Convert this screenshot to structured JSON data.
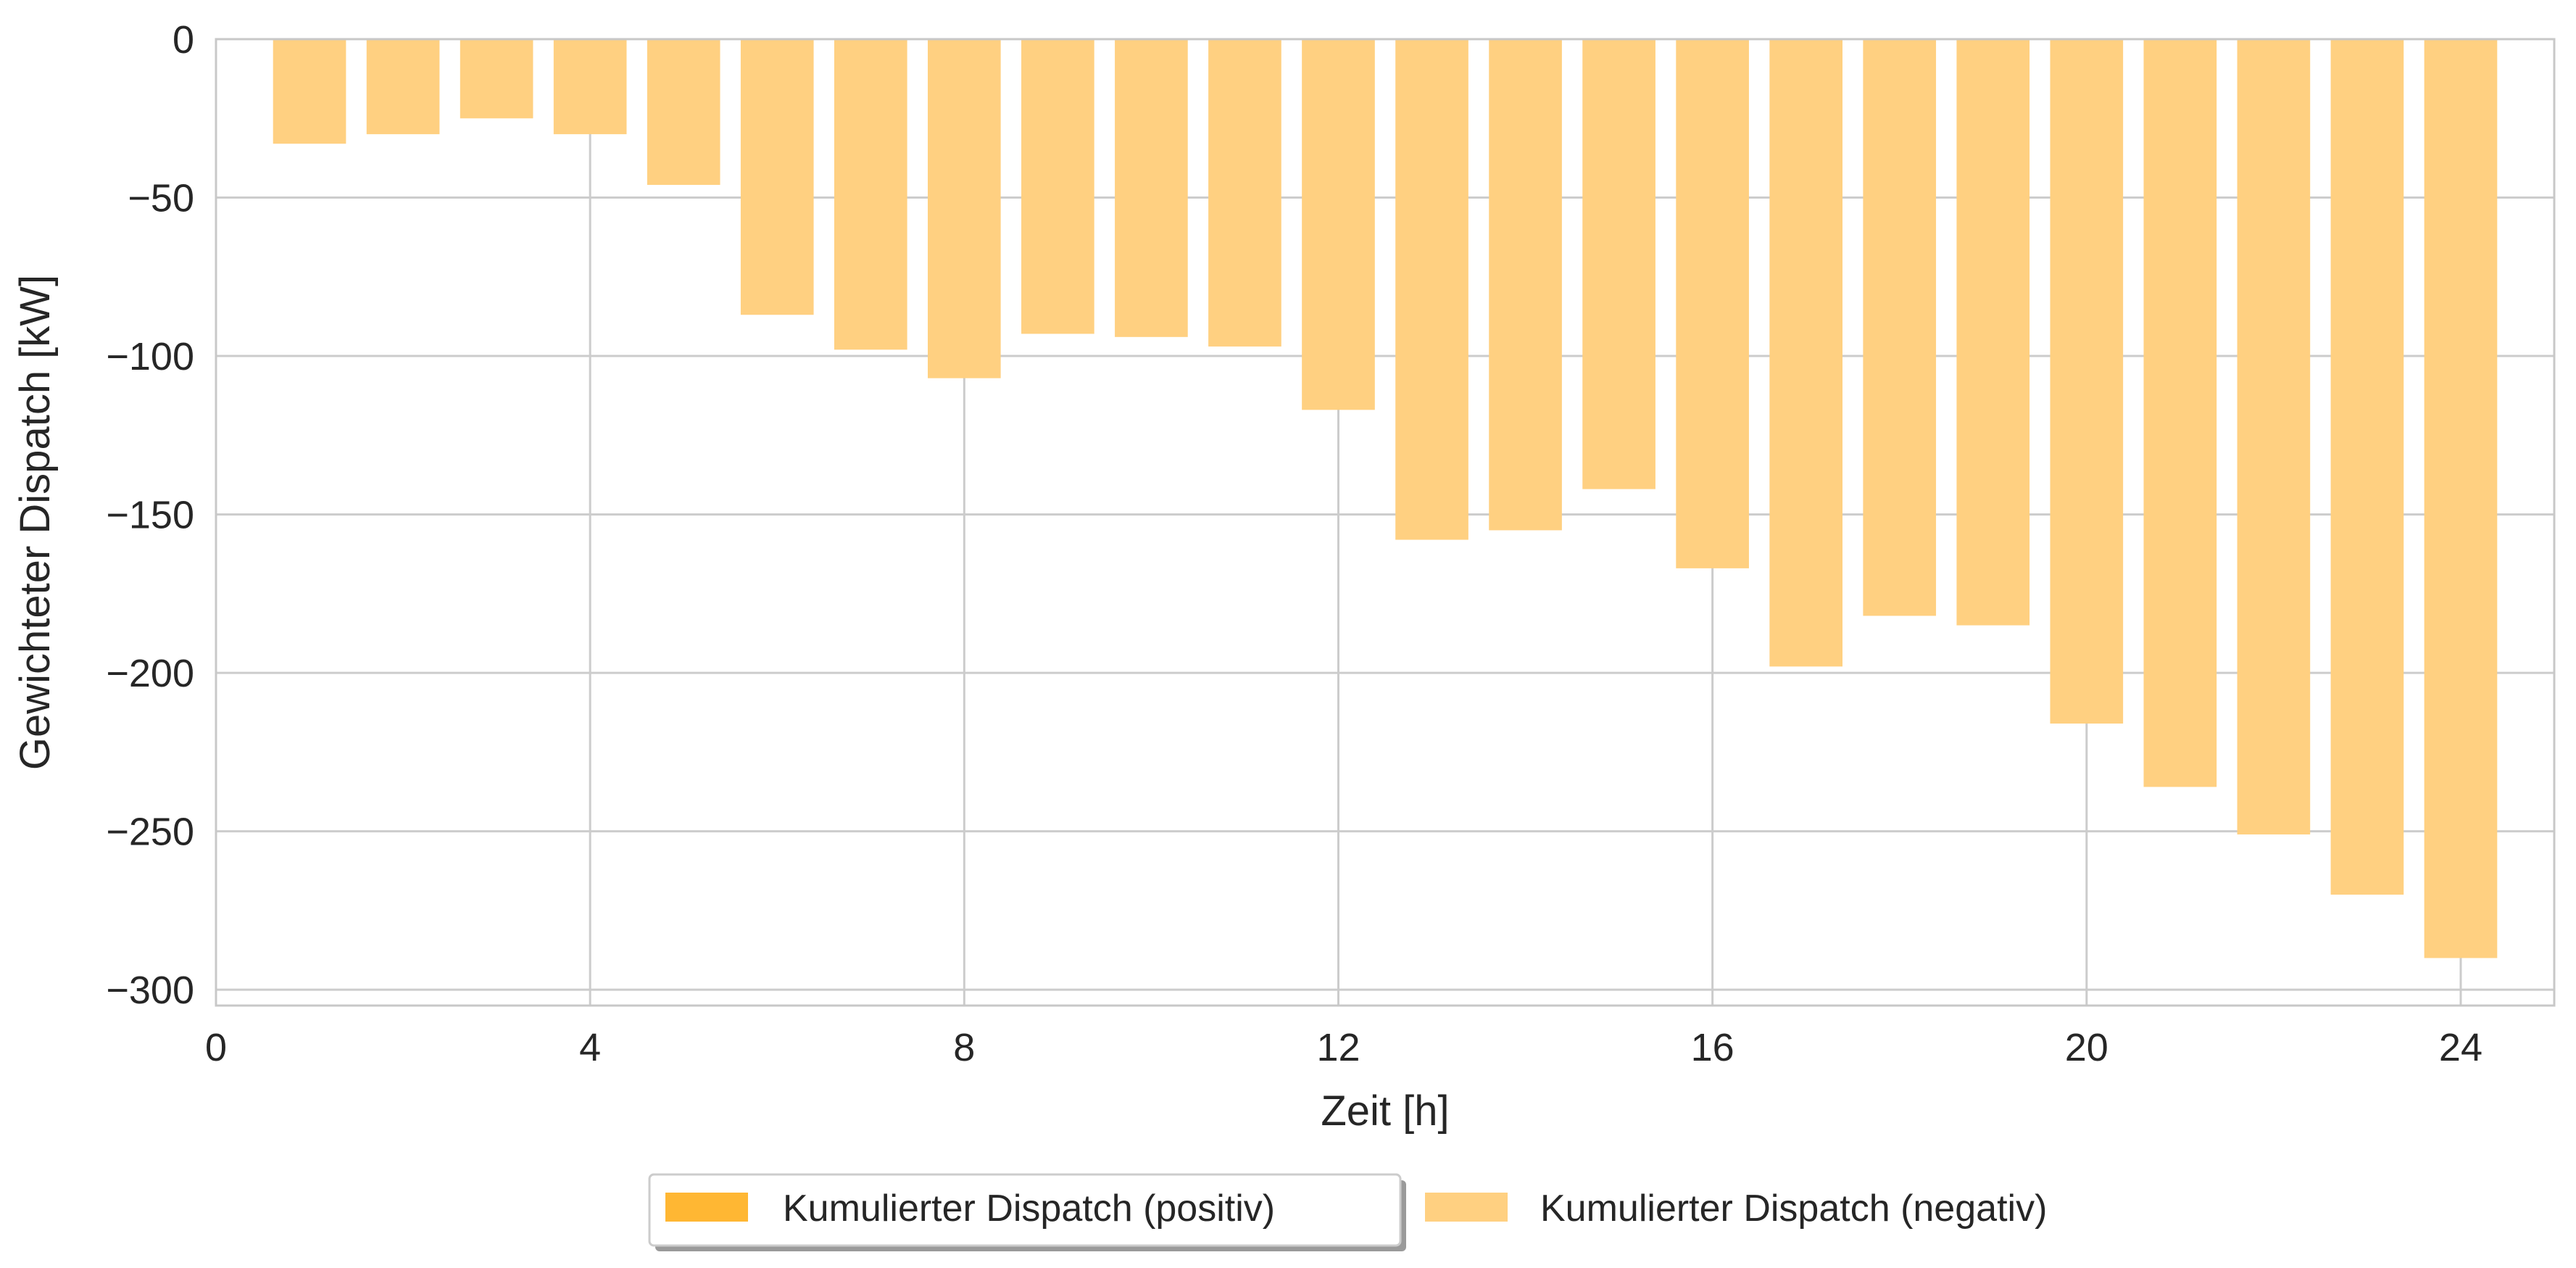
{
  "chart_data": {
    "type": "bar",
    "xlabel": "Zeit [h]",
    "ylabel": "Gewichteter Dispatch [kW]",
    "xlim": [
      0,
      25
    ],
    "ylim": [
      -305,
      0
    ],
    "xticks": [
      0,
      4,
      8,
      12,
      16,
      20,
      24
    ],
    "yticks": [
      0,
      -50,
      -100,
      -150,
      -200,
      -250,
      -300
    ],
    "grid": true,
    "legend_position": "bottom-center",
    "bar_width": 0.78,
    "x": [
      1,
      2,
      3,
      4,
      5,
      6,
      7,
      8,
      9,
      10,
      11,
      12,
      13,
      14,
      15,
      16,
      17,
      18,
      19,
      20,
      21,
      22,
      23,
      24
    ],
    "series": [
      {
        "name": "Kumulierter Dispatch (positiv)",
        "color": "#FFB733",
        "values": [
          0,
          0,
          0,
          0,
          0,
          0,
          0,
          0,
          0,
          0,
          0,
          0,
          0,
          0,
          0,
          0,
          0,
          0,
          0,
          0,
          0,
          0,
          0,
          0
        ]
      },
      {
        "name": "Kumulierter Dispatch (negativ)",
        "color": "#FFD081",
        "values": [
          -33,
          -30,
          -25,
          -30,
          -46,
          -87,
          -98,
          -107,
          -93,
          -94,
          -97,
          -117,
          -158,
          -155,
          -142,
          -167,
          -198,
          -182,
          -185,
          -216,
          -236,
          -251,
          -270,
          -290
        ]
      }
    ]
  }
}
